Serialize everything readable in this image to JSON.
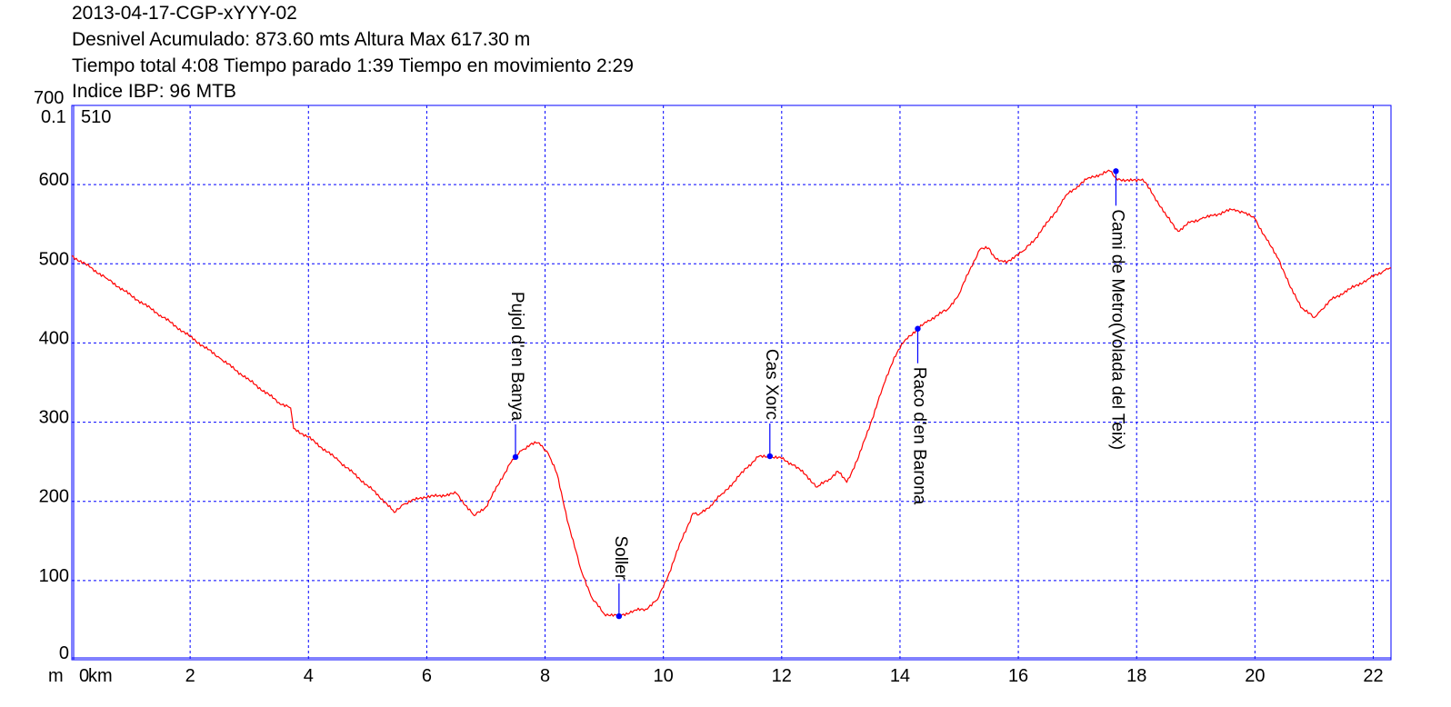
{
  "header": {
    "line1": "2013-04-17-CGP-xYYY-02",
    "line2": "Desnivel Acumulado: 873.60 mts  Altura Max 617.30 m",
    "line3": "Tiempo total 4:08 Tiempo parado 1:39 Tiempo en movimiento 2:29",
    "line4": "Indice IBP: 96 MTB"
  },
  "corner": {
    "y_top": "700",
    "y_scale": "0.1",
    "start_elevation": "510",
    "y_unit": "m",
    "x_unit": "km"
  },
  "colors": {
    "profile": "#ff0000",
    "grid": "#0000ff",
    "marker": "#0000ff",
    "axis": "#0000ff"
  },
  "chart_data": {
    "type": "line",
    "xlim": [
      0,
      22.3
    ],
    "ylim": [
      0,
      700
    ],
    "grid": true,
    "x_ticks": [
      "0",
      "2",
      "4",
      "6",
      "8",
      "10",
      "12",
      "14",
      "16",
      "18",
      "20",
      "22"
    ],
    "y_ticks": [
      "0",
      "100",
      "200",
      "300",
      "400",
      "500",
      "600"
    ],
    "series": [
      {
        "x": [
          0,
          0.3,
          0.6,
          1.0,
          1.5,
          2.0,
          2.5,
          3.0,
          3.5,
          3.7,
          3.75,
          4.0,
          4.5,
          5.0,
          5.3,
          5.45,
          5.6,
          5.9,
          6.2,
          6.5,
          6.8,
          7.0,
          7.2,
          7.4,
          7.5,
          7.6,
          7.75,
          7.9,
          8.05,
          8.2,
          8.4,
          8.6,
          8.8,
          9.0,
          9.25,
          9.5,
          9.7,
          9.9,
          10.1,
          10.3,
          10.5,
          10.6,
          10.8,
          11.0,
          11.2,
          11.4,
          11.6,
          11.8,
          12.0,
          12.2,
          12.4,
          12.6,
          12.8,
          12.95,
          13.1,
          13.3,
          13.5,
          13.7,
          13.9,
          14.1,
          14.3,
          14.45,
          14.6,
          14.8,
          15.0,
          15.2,
          15.35,
          15.5,
          15.6,
          15.7,
          15.8,
          15.95,
          16.1,
          16.3,
          16.5,
          16.7,
          16.8,
          17.0,
          17.2,
          17.4,
          17.55,
          17.65,
          17.8,
          17.95,
          18.1,
          18.3,
          18.5,
          18.7,
          18.9,
          19.1,
          19.3,
          19.5,
          19.65,
          19.8,
          20.0,
          20.2,
          20.4,
          20.6,
          20.8,
          21.0,
          21.1,
          21.3,
          21.6,
          21.9,
          22.2,
          22.3
        ],
        "y": [
          510,
          496,
          481,
          460,
          435,
          408,
          381,
          353,
          325,
          318,
          292,
          281,
          252,
          220,
          199,
          186,
          196,
          205,
          207,
          210,
          182,
          193,
          220,
          247,
          256,
          264,
          272,
          274,
          261,
          235,
          170,
          115,
          77,
          58,
          55,
          62,
          64,
          76,
          110,
          150,
          185,
          183,
          195,
          210,
          225,
          242,
          256,
          257,
          254,
          246,
          234,
          218,
          228,
          238,
          224,
          256,
          298,
          342,
          382,
          405,
          418,
          426,
          434,
          442,
          462,
          496,
          518,
          520,
          508,
          504,
          501,
          510,
          517,
          533,
          553,
          573,
          586,
          598,
          609,
          613,
          617,
          609,
          604,
          606,
          607,
          585,
          561,
          541,
          552,
          557,
          561,
          566,
          569,
          565,
          557,
          530,
          506,
          470,
          444,
          432,
          440,
          455,
          468,
          480,
          492,
          495
        ]
      }
    ],
    "waypoints": [
      {
        "name": "Pujol d'en Banya",
        "x": 7.5,
        "y": 256
      },
      {
        "name": "Soller",
        "x": 9.25,
        "y": 55
      },
      {
        "name": "Cas Xorc",
        "x": 11.8,
        "y": 257
      },
      {
        "name": "Raco d'en Barona",
        "x": 14.3,
        "y": 418
      },
      {
        "name": "Cami de Metro(Volada del Teix)",
        "x": 17.65,
        "y": 617
      }
    ]
  }
}
